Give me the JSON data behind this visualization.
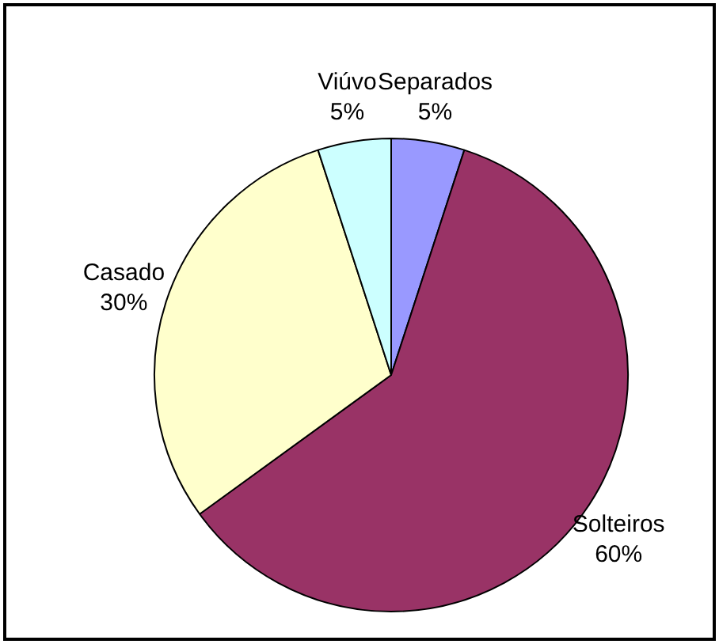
{
  "chart_data": {
    "type": "pie",
    "categories": [
      "Separados",
      "Solteiros",
      "Casado",
      "Viúvo"
    ],
    "values": [
      5,
      60,
      30,
      5
    ],
    "value_labels": [
      "5%",
      "60%",
      "30%",
      "5%"
    ],
    "colors": [
      "#9999ff",
      "#993366",
      "#ffffcc",
      "#ccffff"
    ],
    "legend": false
  }
}
